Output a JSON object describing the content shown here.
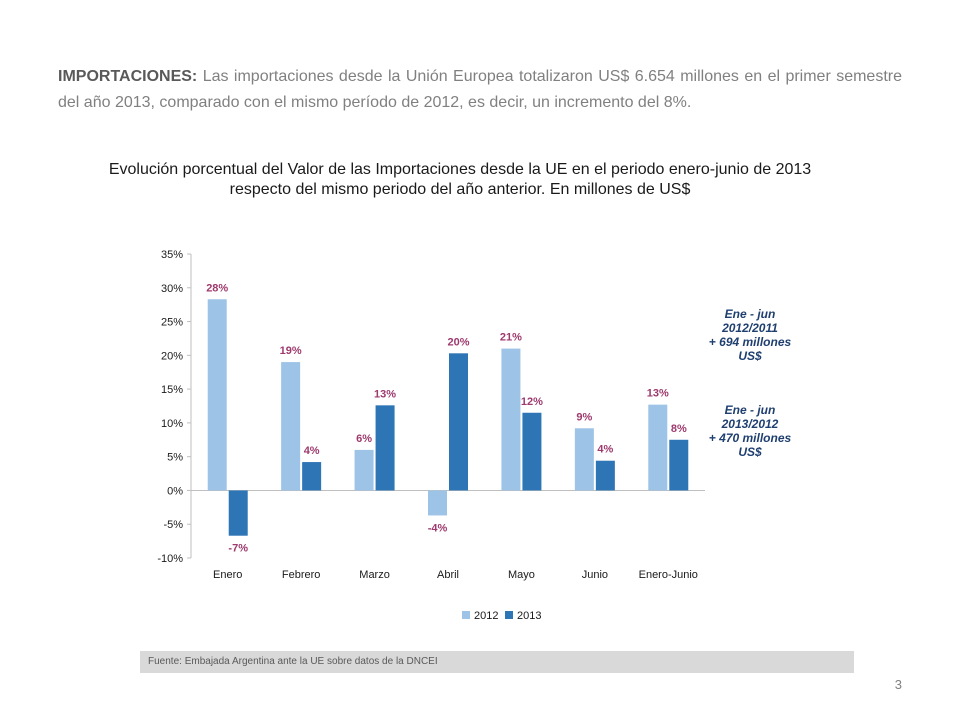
{
  "intro": {
    "lead": "IMPORTACIONES:",
    "text": " Las importaciones desde la Unión Europea totalizaron US$ 6.654 millones en el primer semestre del  año 2013, comparado con el mismo período de 2012, es decir, un incremento del 8%."
  },
  "chart_title": {
    "line1": "Evolución porcentual del Valor de las Importaciones desde la UE en el periodo enero-junio de 2013",
    "line2": "respecto del mismo periodo del año anterior. En millones de US$"
  },
  "callouts": [
    {
      "lines": [
        "Ene - jun",
        "2012/2011",
        "+ 694 millones",
        "US$"
      ]
    },
    {
      "lines": [
        "Ene - jun",
        "2013/2012",
        "+ 470 millones",
        "US$"
      ]
    }
  ],
  "source": "Fuente: Embajada  Argentina ante la UE sobre datos de la DNCEI",
  "page_number": "3",
  "colors": {
    "series_2012": "#9dc3e6",
    "series_2013": "#2e75b6",
    "data_label": "#9e3a6e",
    "axis_text": "#1a1a1a"
  },
  "chart_data": {
    "type": "bar",
    "categories": [
      "Enero",
      "Febrero",
      "Marzo",
      "Abril",
      "Mayo",
      "Junio",
      "Enero-Junio"
    ],
    "series": [
      {
        "name": "2012",
        "values": [
          28.3,
          19.0,
          6.0,
          -3.7,
          21.0,
          9.2,
          12.7
        ],
        "labels": [
          "28%",
          "19%",
          "6%",
          "-4%",
          "21%",
          "9%",
          "13%"
        ]
      },
      {
        "name": "2013",
        "values": [
          -6.7,
          4.2,
          12.6,
          20.3,
          11.5,
          4.4,
          7.5
        ],
        "labels": [
          "-7%",
          "4%",
          "13%",
          "20%",
          "12%",
          "4%",
          "8%"
        ]
      }
    ],
    "yticks": [
      "35%",
      "30%",
      "25%",
      "20%",
      "15%",
      "10%",
      "5%",
      "0%",
      "-5%",
      "-10%"
    ],
    "ytick_values": [
      35,
      30,
      25,
      20,
      15,
      10,
      5,
      0,
      -5,
      -10
    ],
    "ylim": [
      -10,
      35
    ],
    "title": "",
    "xlabel": "",
    "ylabel": "",
    "legend": "bottom",
    "grid": false
  }
}
